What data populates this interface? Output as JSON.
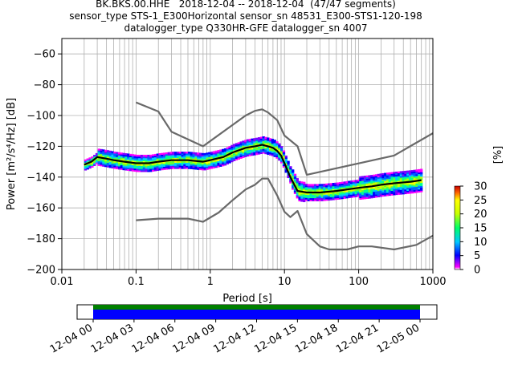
{
  "header": {
    "title_line1": "BK.BKS.00.HHE   2018-12-04 -- 2018-12-04  (47/47 segments)",
    "title_line2": "sensor_type STS-1_E300Horizontal sensor_sn 48531_E300-STS1-120-198",
    "title_line3": "datalogger_type Q330HR-GFE datalogger_sn 4007"
  },
  "chart_data": [
    {
      "type": "heatmap",
      "title": "BK.BKS.00.HHE   2018-12-04 -- 2018-12-04  (47/47 segments)",
      "xlabel": "Period [s]",
      "ylabel": "Power [m²/s⁴/Hz] [dB]",
      "xscale": "log",
      "xlim": [
        0.01,
        1000
      ],
      "ylim": [
        -200,
        -50
      ],
      "x_tick_labels": [
        "0.01",
        "0.1",
        "1",
        "10",
        "100",
        "1000"
      ],
      "x_tick_values": [
        0.01,
        0.1,
        1,
        10,
        100,
        1000
      ],
      "y_tick_values": [
        -60,
        -80,
        -100,
        -120,
        -140,
        -160,
        -180,
        -200
      ],
      "grid": true,
      "colorbar": {
        "label": "[%]",
        "range": [
          0,
          30
        ],
        "ticks": [
          0,
          5,
          10,
          15,
          20,
          25,
          30
        ],
        "colormap": "pqlx"
      },
      "series": [
        {
          "name": "",
          "color": "#000000",
          "x": [
            0.02,
            0.025,
            0.03,
            0.04,
            0.05,
            0.07,
            0.1,
            0.15,
            0.2,
            0.3,
            0.5,
            0.8,
            1.0,
            1.5,
            2.0,
            3.0,
            4.0,
            5.0,
            6.0,
            7.0,
            8.0,
            9.0,
            10.0,
            12.0,
            15.0,
            20.0,
            30.0,
            50.0,
            70.0,
            100.0,
            150.0,
            200.0,
            300.0,
            500.0,
            700.0
          ],
          "y": [
            -132,
            -130,
            -127,
            -128,
            -129,
            -130,
            -131,
            -131,
            -130,
            -129,
            -129,
            -130,
            -129,
            -127,
            -124,
            -121,
            -120,
            -119,
            -120,
            -121,
            -123,
            -126,
            -131,
            -140,
            -149,
            -150,
            -150,
            -149,
            -148,
            -147,
            -146,
            -145,
            -144,
            -143,
            -142
          ]
        },
        {
          "name": "",
          "color": "#696969",
          "x": [
            0.1,
            0.2,
            0.3,
            0.8,
            3.0,
            4.0,
            5.0,
            6.0,
            8.0,
            10.0,
            15.0,
            20.0,
            300.0,
            1000.0
          ],
          "y": [
            -91.5,
            -97.4,
            -110.5,
            -120.0,
            -100.0,
            -97.0,
            -96.0,
            -98.0,
            -103.0,
            -113.0,
            -120.0,
            -138.5,
            -126.0,
            -111.5
          ]
        },
        {
          "name": "",
          "color": "#696969",
          "x": [
            0.1,
            0.2,
            0.5,
            0.8,
            1.3,
            2.0,
            3.0,
            4.0,
            5.0,
            6.0,
            8.0,
            10.0,
            12.0,
            15.0,
            20.0,
            30.0,
            40.0,
            70.0,
            100.0,
            150.0,
            300.0,
            600.0,
            1000.0
          ],
          "y": [
            -168.0,
            -167.0,
            -167.0,
            -169.0,
            -163.0,
            -155.0,
            -148.0,
            -145.0,
            -141.0,
            -141.0,
            -152.0,
            -162.5,
            -166.0,
            -162.0,
            -177.0,
            -185.0,
            -187.0,
            -187.0,
            -185.0,
            -185.0,
            -187.0,
            -184.0,
            -178.0
          ]
        }
      ]
    },
    {
      "type": "bar",
      "title": "",
      "xlabel": "",
      "ylabel": "",
      "x_tick_labels": [
        "12-04 00",
        "12-04 03",
        "12-04 06",
        "12-04 09",
        "12-04 12",
        "12-04 15",
        "12-04 18",
        "12-04 21",
        "12-05 00"
      ],
      "segments": [
        {
          "start": "2018-12-04 00:00",
          "end": "2018-12-05 00:00",
          "color": "#0000ff"
        },
        {
          "start": "2018-12-04 00:00",
          "end": "2018-12-05 00:00",
          "color": "#008000"
        }
      ]
    }
  ]
}
